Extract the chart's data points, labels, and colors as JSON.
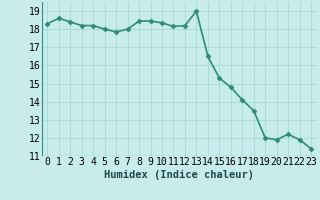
{
  "x": [
    0,
    1,
    2,
    3,
    4,
    5,
    6,
    7,
    8,
    9,
    10,
    11,
    12,
    13,
    14,
    15,
    16,
    17,
    18,
    19,
    20,
    21,
    22,
    23
  ],
  "y": [
    18.3,
    18.6,
    18.4,
    18.2,
    18.2,
    18.0,
    17.85,
    18.0,
    18.45,
    18.45,
    18.35,
    18.15,
    18.2,
    19.0,
    16.5,
    15.3,
    14.8,
    14.1,
    13.5,
    12.0,
    11.9,
    12.2,
    11.9,
    11.4
  ],
  "line_color": "#2e8b7a",
  "marker_color": "#2e8b7a",
  "bg_color": "#c8ecec",
  "grid_color": "#9fd4d4",
  "xlabel": "Humidex (Indice chaleur)",
  "ylim": [
    11,
    19.5
  ],
  "xlim": [
    -0.5,
    23.5
  ],
  "yticks": [
    11,
    12,
    13,
    14,
    15,
    16,
    17,
    18,
    19
  ],
  "xticks": [
    0,
    1,
    2,
    3,
    4,
    5,
    6,
    7,
    8,
    9,
    10,
    11,
    12,
    13,
    14,
    15,
    16,
    17,
    18,
    19,
    20,
    21,
    22,
    23
  ],
  "xlabel_fontsize": 7.5,
  "tick_fontsize": 7,
  "line_width": 1.2,
  "marker_size": 2.5
}
